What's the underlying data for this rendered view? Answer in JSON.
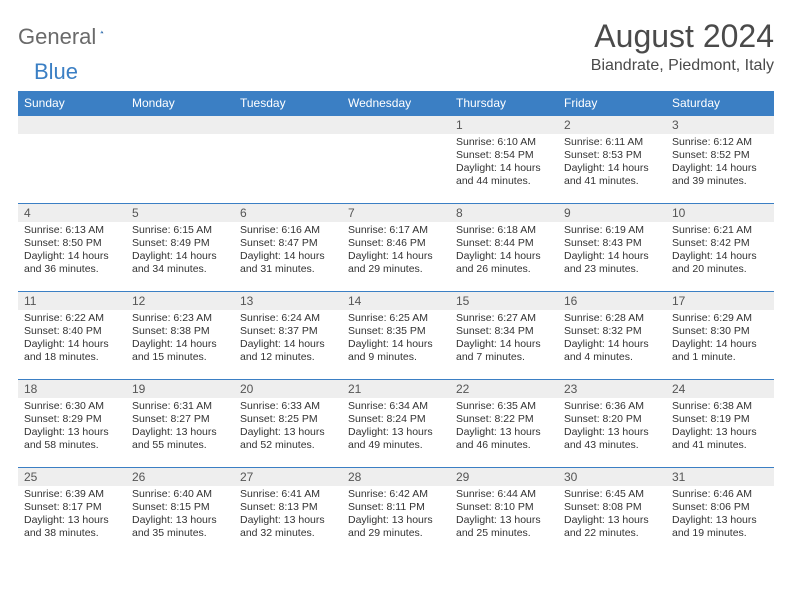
{
  "brand": {
    "general": "General",
    "blue": "Blue"
  },
  "title": "August 2024",
  "subtitle": "Biandrate, Piedmont, Italy",
  "colors": {
    "header_bg": "#3b7fc4",
    "header_fg": "#ffffff",
    "daynum_bg": "#eeeeee",
    "border": "#3b7fc4",
    "text": "#333333",
    "title_color": "#4a4a4a"
  },
  "dayHeaders": [
    "Sunday",
    "Monday",
    "Tuesday",
    "Wednesday",
    "Thursday",
    "Friday",
    "Saturday"
  ],
  "weeks": [
    [
      null,
      null,
      null,
      null,
      {
        "n": "1",
        "sr": "6:10 AM",
        "ss": "8:54 PM",
        "dl": "14 hours and 44 minutes."
      },
      {
        "n": "2",
        "sr": "6:11 AM",
        "ss": "8:53 PM",
        "dl": "14 hours and 41 minutes."
      },
      {
        "n": "3",
        "sr": "6:12 AM",
        "ss": "8:52 PM",
        "dl": "14 hours and 39 minutes."
      }
    ],
    [
      {
        "n": "4",
        "sr": "6:13 AM",
        "ss": "8:50 PM",
        "dl": "14 hours and 36 minutes."
      },
      {
        "n": "5",
        "sr": "6:15 AM",
        "ss": "8:49 PM",
        "dl": "14 hours and 34 minutes."
      },
      {
        "n": "6",
        "sr": "6:16 AM",
        "ss": "8:47 PM",
        "dl": "14 hours and 31 minutes."
      },
      {
        "n": "7",
        "sr": "6:17 AM",
        "ss": "8:46 PM",
        "dl": "14 hours and 29 minutes."
      },
      {
        "n": "8",
        "sr": "6:18 AM",
        "ss": "8:44 PM",
        "dl": "14 hours and 26 minutes."
      },
      {
        "n": "9",
        "sr": "6:19 AM",
        "ss": "8:43 PM",
        "dl": "14 hours and 23 minutes."
      },
      {
        "n": "10",
        "sr": "6:21 AM",
        "ss": "8:42 PM",
        "dl": "14 hours and 20 minutes."
      }
    ],
    [
      {
        "n": "11",
        "sr": "6:22 AM",
        "ss": "8:40 PM",
        "dl": "14 hours and 18 minutes."
      },
      {
        "n": "12",
        "sr": "6:23 AM",
        "ss": "8:38 PM",
        "dl": "14 hours and 15 minutes."
      },
      {
        "n": "13",
        "sr": "6:24 AM",
        "ss": "8:37 PM",
        "dl": "14 hours and 12 minutes."
      },
      {
        "n": "14",
        "sr": "6:25 AM",
        "ss": "8:35 PM",
        "dl": "14 hours and 9 minutes."
      },
      {
        "n": "15",
        "sr": "6:27 AM",
        "ss": "8:34 PM",
        "dl": "14 hours and 7 minutes."
      },
      {
        "n": "16",
        "sr": "6:28 AM",
        "ss": "8:32 PM",
        "dl": "14 hours and 4 minutes."
      },
      {
        "n": "17",
        "sr": "6:29 AM",
        "ss": "8:30 PM",
        "dl": "14 hours and 1 minute."
      }
    ],
    [
      {
        "n": "18",
        "sr": "6:30 AM",
        "ss": "8:29 PM",
        "dl": "13 hours and 58 minutes."
      },
      {
        "n": "19",
        "sr": "6:31 AM",
        "ss": "8:27 PM",
        "dl": "13 hours and 55 minutes."
      },
      {
        "n": "20",
        "sr": "6:33 AM",
        "ss": "8:25 PM",
        "dl": "13 hours and 52 minutes."
      },
      {
        "n": "21",
        "sr": "6:34 AM",
        "ss": "8:24 PM",
        "dl": "13 hours and 49 minutes."
      },
      {
        "n": "22",
        "sr": "6:35 AM",
        "ss": "8:22 PM",
        "dl": "13 hours and 46 minutes."
      },
      {
        "n": "23",
        "sr": "6:36 AM",
        "ss": "8:20 PM",
        "dl": "13 hours and 43 minutes."
      },
      {
        "n": "24",
        "sr": "6:38 AM",
        "ss": "8:19 PM",
        "dl": "13 hours and 41 minutes."
      }
    ],
    [
      {
        "n": "25",
        "sr": "6:39 AM",
        "ss": "8:17 PM",
        "dl": "13 hours and 38 minutes."
      },
      {
        "n": "26",
        "sr": "6:40 AM",
        "ss": "8:15 PM",
        "dl": "13 hours and 35 minutes."
      },
      {
        "n": "27",
        "sr": "6:41 AM",
        "ss": "8:13 PM",
        "dl": "13 hours and 32 minutes."
      },
      {
        "n": "28",
        "sr": "6:42 AM",
        "ss": "8:11 PM",
        "dl": "13 hours and 29 minutes."
      },
      {
        "n": "29",
        "sr": "6:44 AM",
        "ss": "8:10 PM",
        "dl": "13 hours and 25 minutes."
      },
      {
        "n": "30",
        "sr": "6:45 AM",
        "ss": "8:08 PM",
        "dl": "13 hours and 22 minutes."
      },
      {
        "n": "31",
        "sr": "6:46 AM",
        "ss": "8:06 PM",
        "dl": "13 hours and 19 minutes."
      }
    ]
  ],
  "labels": {
    "sunrise": "Sunrise: ",
    "sunset": "Sunset: ",
    "daylight": "Daylight: "
  }
}
